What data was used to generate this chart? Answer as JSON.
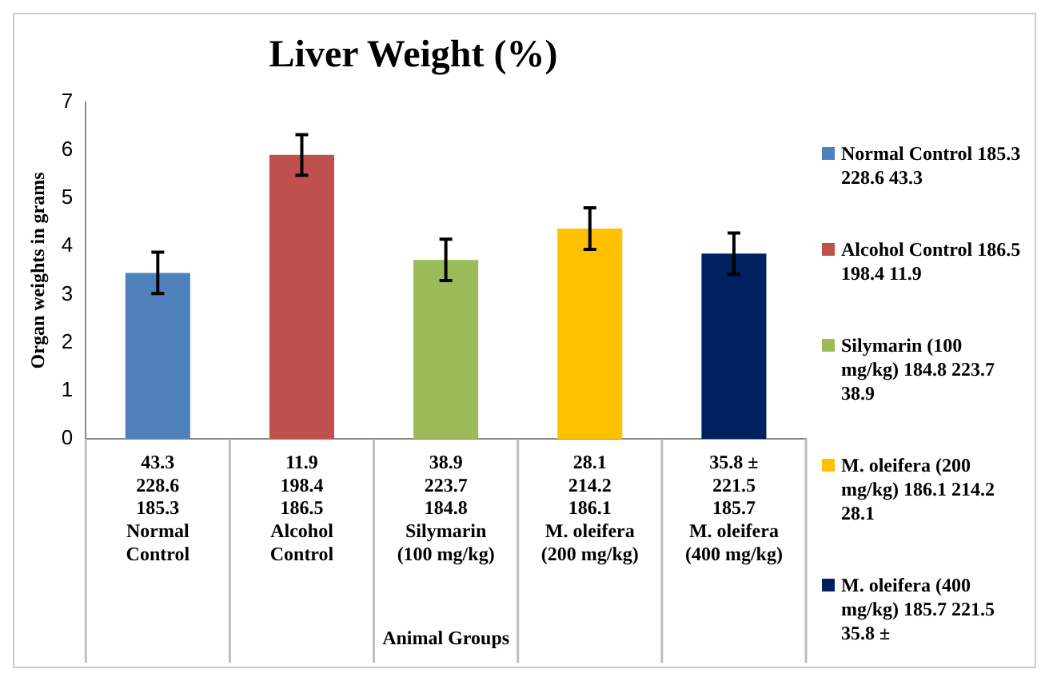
{
  "chart_data": {
    "type": "bar",
    "title": "Liver Weight (%)",
    "xlabel": "Animal Groups",
    "ylabel": "Organ weights in grams",
    "categories": [
      "43.3\n228.6\n185.3\nNormal\nControl",
      "11.9\n198.4\n186.5\nAlcohol\nControl",
      "38.9\n223.7\n184.8\nSilymarin\n(100 mg/kg)",
      "28.1\n214.2\n186.1\nM. oleifera\n(200 mg/kg)",
      "35.8 ±\n221.5\n185.7\nM. oleifera\n(400 mg/kg)"
    ],
    "series": [
      {
        "name": "Normal Control 185.3 228.6 43.3",
        "color": "#4f81bd",
        "values": [
          3.45,
          null,
          null,
          null,
          null
        ],
        "errors": [
          0.43,
          null,
          null,
          null,
          null
        ]
      },
      {
        "name": "Alcohol Control 186.5 198.4 11.9",
        "color": "#c0504d",
        "values": [
          null,
          5.9,
          null,
          null,
          null
        ],
        "errors": [
          null,
          0.42,
          null,
          null,
          null
        ]
      },
      {
        "name": "Silymarin (100 mg/kg) 184.8 223.7 38.9",
        "color": "#9bbb59",
        "values": [
          null,
          null,
          3.72,
          null,
          null
        ],
        "errors": [
          null,
          null,
          0.43,
          null,
          null
        ]
      },
      {
        "name": "M. oleifera (200 mg/kg) 186.1 214.2 28.1",
        "color": "#ffc000",
        "values": [
          null,
          null,
          null,
          4.37,
          null
        ],
        "errors": [
          null,
          null,
          null,
          0.43,
          null
        ]
      },
      {
        "name": "M. oleifera (400 mg/kg) 185.7 221.5 35.8 ±",
        "color": "#002060",
        "values": [
          null,
          null,
          null,
          null,
          3.85
        ],
        "errors": [
          null,
          null,
          null,
          null,
          0.43
        ]
      }
    ],
    "ylim": [
      0,
      7
    ],
    "yticks": [
      0,
      1,
      2,
      3,
      4,
      5,
      6,
      7
    ],
    "grid": false,
    "legend": "right"
  }
}
